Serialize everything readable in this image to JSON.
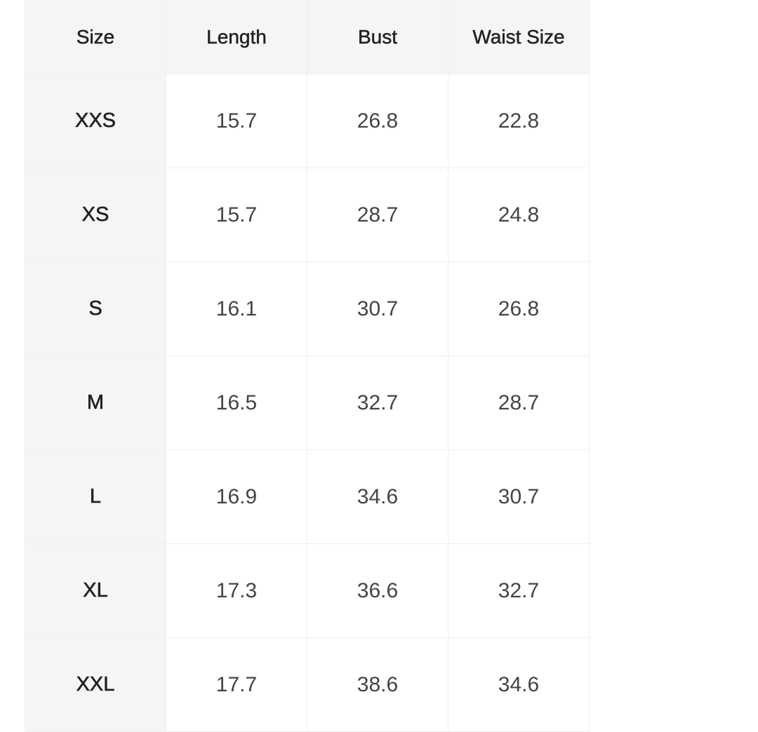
{
  "table": {
    "headers": [
      "Size",
      "Length",
      "Bust",
      "Waist Size"
    ],
    "rows": [
      [
        "XXS",
        "15.7",
        "26.8",
        "22.8"
      ],
      [
        "XS",
        "15.7",
        "28.7",
        "24.8"
      ],
      [
        "S",
        "16.1",
        "30.7",
        "26.8"
      ],
      [
        "M",
        "16.5",
        "32.7",
        "28.7"
      ],
      [
        "L",
        "16.9",
        "34.6",
        "30.7"
      ],
      [
        "XL",
        "17.3",
        "36.6",
        "32.7"
      ],
      [
        "XXL",
        "17.7",
        "38.6",
        "34.6"
      ]
    ]
  }
}
